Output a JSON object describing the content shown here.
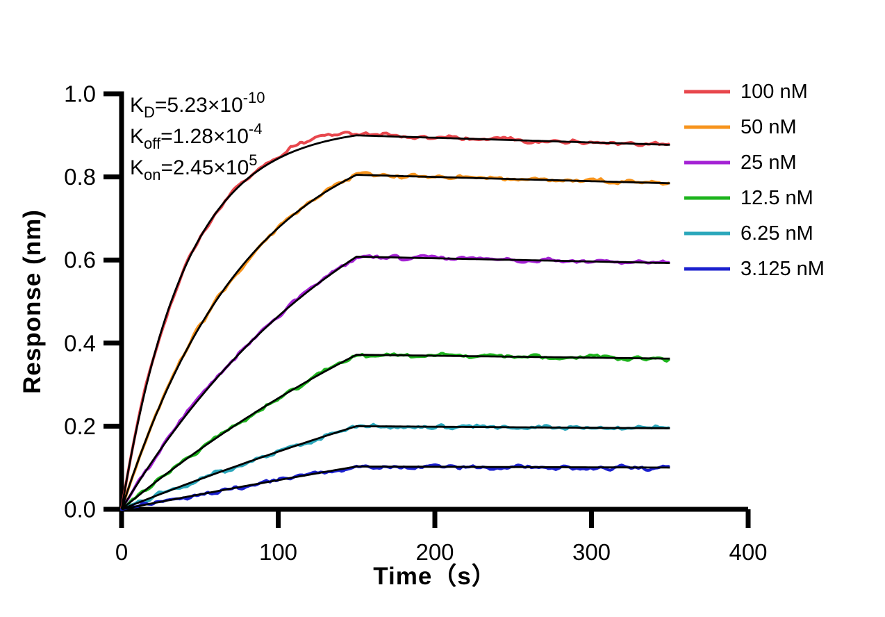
{
  "page": {
    "background_color": "#ffffff"
  },
  "chart_data": {
    "type": "line",
    "title": "",
    "xlabel": "Time（s）",
    "ylabel": "Response (nm)",
    "xlim": [
      0,
      400
    ],
    "ylim": [
      0,
      1.0
    ],
    "x_ticks": [
      0,
      100,
      200,
      300,
      400
    ],
    "y_tick_values": [
      0,
      0.2,
      0.4,
      0.6,
      0.8,
      1.0
    ],
    "y_tick_labels": [
      "0.0",
      "0.2",
      "0.4",
      "0.6",
      "0.8",
      "1.0"
    ],
    "grid": false,
    "axis_color": "#000000",
    "fit_line_color": "#000000",
    "legend_position": "outside-top-right",
    "annotation_lines": [
      [
        {
          "t": "K"
        },
        {
          "t": "D",
          "s": "sub"
        },
        {
          "t": "=5.23×10"
        },
        {
          "t": "-10",
          "s": "sup"
        }
      ],
      [
        {
          "t": "K"
        },
        {
          "t": "off",
          "s": "sub"
        },
        {
          "t": "=1.28×10"
        },
        {
          "t": "-4",
          "s": "sup"
        }
      ],
      [
        {
          "t": "K"
        },
        {
          "t": "on",
          "s": "sub"
        },
        {
          "t": "=2.45×10"
        },
        {
          "t": "5",
          "s": "sup"
        }
      ]
    ],
    "model": {
      "KD_M": 5.23e-10,
      "kon_per_M_per_s": 245000,
      "koff_per_s": 0.000128,
      "association_start_s": 0,
      "association_end_s": 150,
      "curve_end_s": 350
    },
    "series": [
      {
        "name": "100 nM",
        "concentration_nM": 100,
        "color": "#E8474D",
        "peak_response_nm": 0.9,
        "end_response_nm": 0.877,
        "overshoot_nm": 0.012
      },
      {
        "name": "50 nM",
        "concentration_nM": 50,
        "color": "#F7941D",
        "peak_response_nm": 0.805,
        "end_response_nm": 0.785,
        "overshoot_nm": 0
      },
      {
        "name": "25 nM",
        "concentration_nM": 25,
        "color": "#A422D4",
        "peak_response_nm": 0.608,
        "end_response_nm": 0.593,
        "overshoot_nm": 0
      },
      {
        "name": "12.5 nM",
        "concentration_nM": 12.5,
        "color": "#1DB41D",
        "peak_response_nm": 0.372,
        "end_response_nm": 0.363,
        "overshoot_nm": 0
      },
      {
        "name": "6.25 nM",
        "concentration_nM": 6.25,
        "color": "#2BA7BB",
        "peak_response_nm": 0.2,
        "end_response_nm": 0.195,
        "overshoot_nm": 0
      },
      {
        "name": "3.125 nM",
        "concentration_nM": 3.125,
        "color": "#1B20CE",
        "peak_response_nm": 0.103,
        "end_response_nm": 0.1,
        "overshoot_nm": 0
      }
    ]
  }
}
